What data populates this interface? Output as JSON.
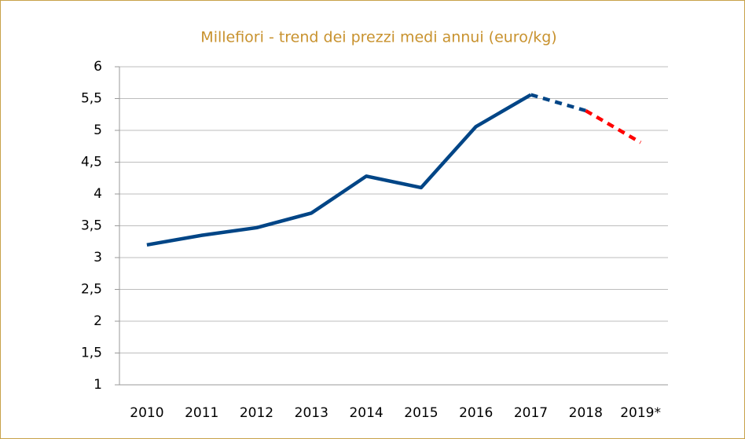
{
  "chart_data": {
    "type": "line",
    "title": "Millefiori - trend dei prezzi medi annui (euro/kg)",
    "categories": [
      "2010",
      "2011",
      "2012",
      "2013",
      "2014",
      "2015",
      "2016",
      "2017",
      "2018",
      "2019*"
    ],
    "series": [
      {
        "color": "#004586",
        "dashed": false,
        "values": [
          3.2,
          3.35,
          3.47,
          3.7,
          4.28,
          4.1,
          5.06,
          5.56,
          null,
          null
        ]
      },
      {
        "color": "#004586",
        "dashed": true,
        "values": [
          null,
          null,
          null,
          null,
          null,
          null,
          null,
          5.56,
          5.31,
          null
        ]
      },
      {
        "color": "#ff0000",
        "dashed": true,
        "values": [
          null,
          null,
          null,
          null,
          null,
          null,
          null,
          null,
          5.31,
          4.81
        ]
      }
    ],
    "ylim": [
      1,
      6
    ],
    "yticks": [
      1,
      {
        "value": 1.5,
        "label": "1,5"
      },
      2,
      {
        "value": 2.5,
        "label": "2,5"
      },
      3,
      {
        "value": 3.5,
        "label": "3,5"
      },
      4,
      {
        "value": 4.5,
        "label": "4,5"
      },
      5,
      {
        "value": 5.5,
        "label": "5,5"
      },
      6
    ],
    "grid": true
  }
}
